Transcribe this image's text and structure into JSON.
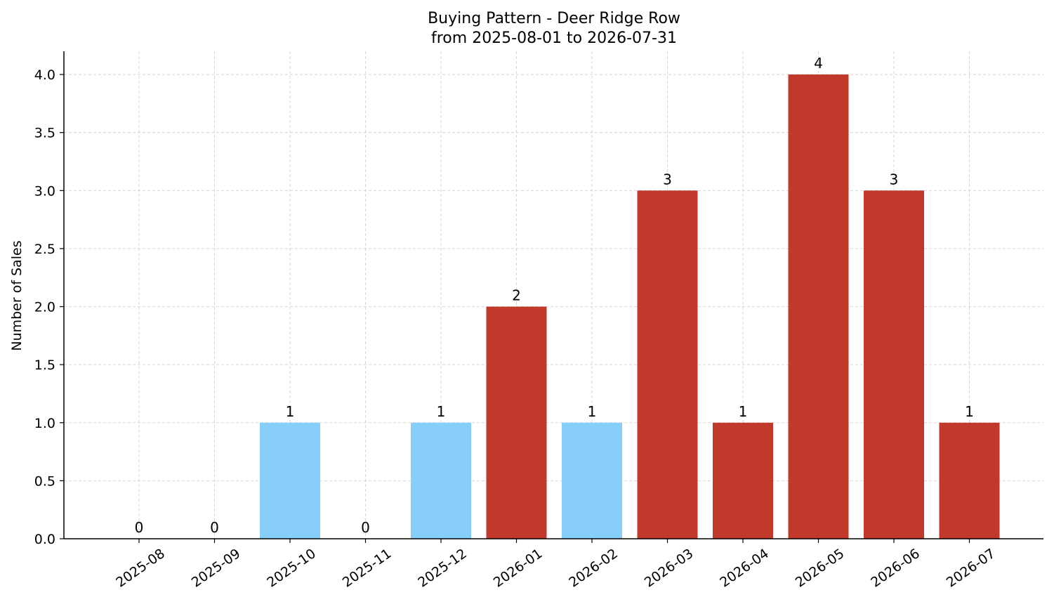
{
  "chart_data": {
    "type": "bar",
    "title": "Buying Pattern - Deer Ridge Row",
    "subtitle": "from 2025-08-01 to 2026-07-31",
    "xlabel": "",
    "ylabel": "Number of Sales",
    "categories": [
      "2025-08",
      "2025-09",
      "2025-10",
      "2025-11",
      "2025-12",
      "2026-01",
      "2026-02",
      "2026-03",
      "2026-04",
      "2026-05",
      "2026-06",
      "2026-07"
    ],
    "values": [
      0,
      0,
      1,
      0,
      1,
      2,
      1,
      3,
      1,
      4,
      3,
      1
    ],
    "data_labels": [
      "0",
      "0",
      "1",
      "0",
      "1",
      "2",
      "1",
      "3",
      "1",
      "4",
      "3",
      "1"
    ],
    "bar_colors": [
      "#87CEFA",
      "#87CEFA",
      "#87CEFA",
      "#87CEFA",
      "#87CEFA",
      "#C0392B",
      "#87CEFA",
      "#C0392B",
      "#C0392B",
      "#C0392B",
      "#C0392B",
      "#C0392B"
    ],
    "ylim": [
      0,
      4.2
    ],
    "yticks": [
      0,
      0.5,
      1,
      1.5,
      2,
      2.5,
      3,
      3.5,
      4
    ],
    "ytick_labels": [
      "0.0",
      "0.5",
      "1.0",
      "1.5",
      "2.0",
      "2.5",
      "3.0",
      "3.5",
      "4.0"
    ],
    "grid": true,
    "grid_color": "#cccccc",
    "axis_color": "#000000"
  }
}
